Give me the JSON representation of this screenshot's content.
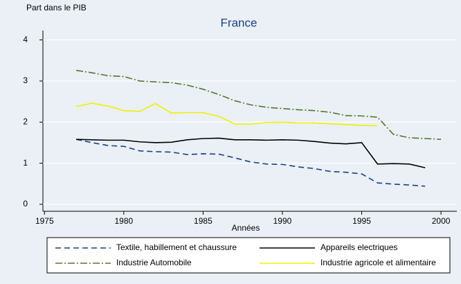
{
  "chart_data": {
    "type": "line",
    "title": "France",
    "ylabel": "Part dans le PIB",
    "xlabel": "Années",
    "x": [
      1977,
      1978,
      1979,
      1980,
      1981,
      1982,
      1983,
      1984,
      1985,
      1986,
      1987,
      1988,
      1989,
      1990,
      1991,
      1992,
      1993,
      1994,
      1995,
      1996,
      1997,
      1998,
      1999,
      2000
    ],
    "series": [
      {
        "name": "Textile, habillement et chaussure",
        "color": "#1a3f85",
        "dash": "8,5",
        "values": [
          1.58,
          1.5,
          1.43,
          1.41,
          1.3,
          1.28,
          1.27,
          1.21,
          1.23,
          1.22,
          1.13,
          1.03,
          0.98,
          0.97,
          0.91,
          0.87,
          0.8,
          0.78,
          0.74,
          0.52,
          0.49,
          0.47,
          0.44,
          null
        ]
      },
      {
        "name": "Appareils electriques",
        "color": "#000000",
        "dash": "none",
        "values": [
          1.58,
          1.57,
          1.56,
          1.56,
          1.52,
          1.5,
          1.51,
          1.57,
          1.6,
          1.61,
          1.57,
          1.57,
          1.56,
          1.57,
          1.56,
          1.53,
          1.49,
          1.47,
          1.5,
          0.98,
          0.99,
          0.98,
          0.89,
          null
        ]
      },
      {
        "name": "Industrie Automobile",
        "color": "#55752f",
        "dash": "10,3,2,3",
        "values": [
          3.26,
          3.2,
          3.13,
          3.11,
          3.0,
          2.98,
          2.96,
          2.9,
          2.8,
          2.67,
          2.52,
          2.42,
          2.36,
          2.33,
          2.3,
          2.28,
          2.24,
          2.16,
          2.15,
          2.12,
          1.7,
          1.62,
          1.6,
          1.58
        ]
      },
      {
        "name": "Industrie agricole et alimentaire",
        "color": "#f0f000",
        "dash": "none",
        "values": [
          2.38,
          2.46,
          2.39,
          2.28,
          2.26,
          2.45,
          2.22,
          2.23,
          2.23,
          2.14,
          1.95,
          1.95,
          1.99,
          2.0,
          1.98,
          1.98,
          1.96,
          1.94,
          1.92,
          1.91,
          null,
          null,
          null,
          null
        ]
      }
    ],
    "xlim": [
      1974.9,
      2001
    ],
    "xticks": [
      1975,
      1980,
      1985,
      1990,
      1995,
      2000
    ],
    "ylim": [
      -0.17,
      4.23
    ],
    "yticks": [
      0,
      1,
      2,
      3,
      4
    ],
    "grid": true
  }
}
